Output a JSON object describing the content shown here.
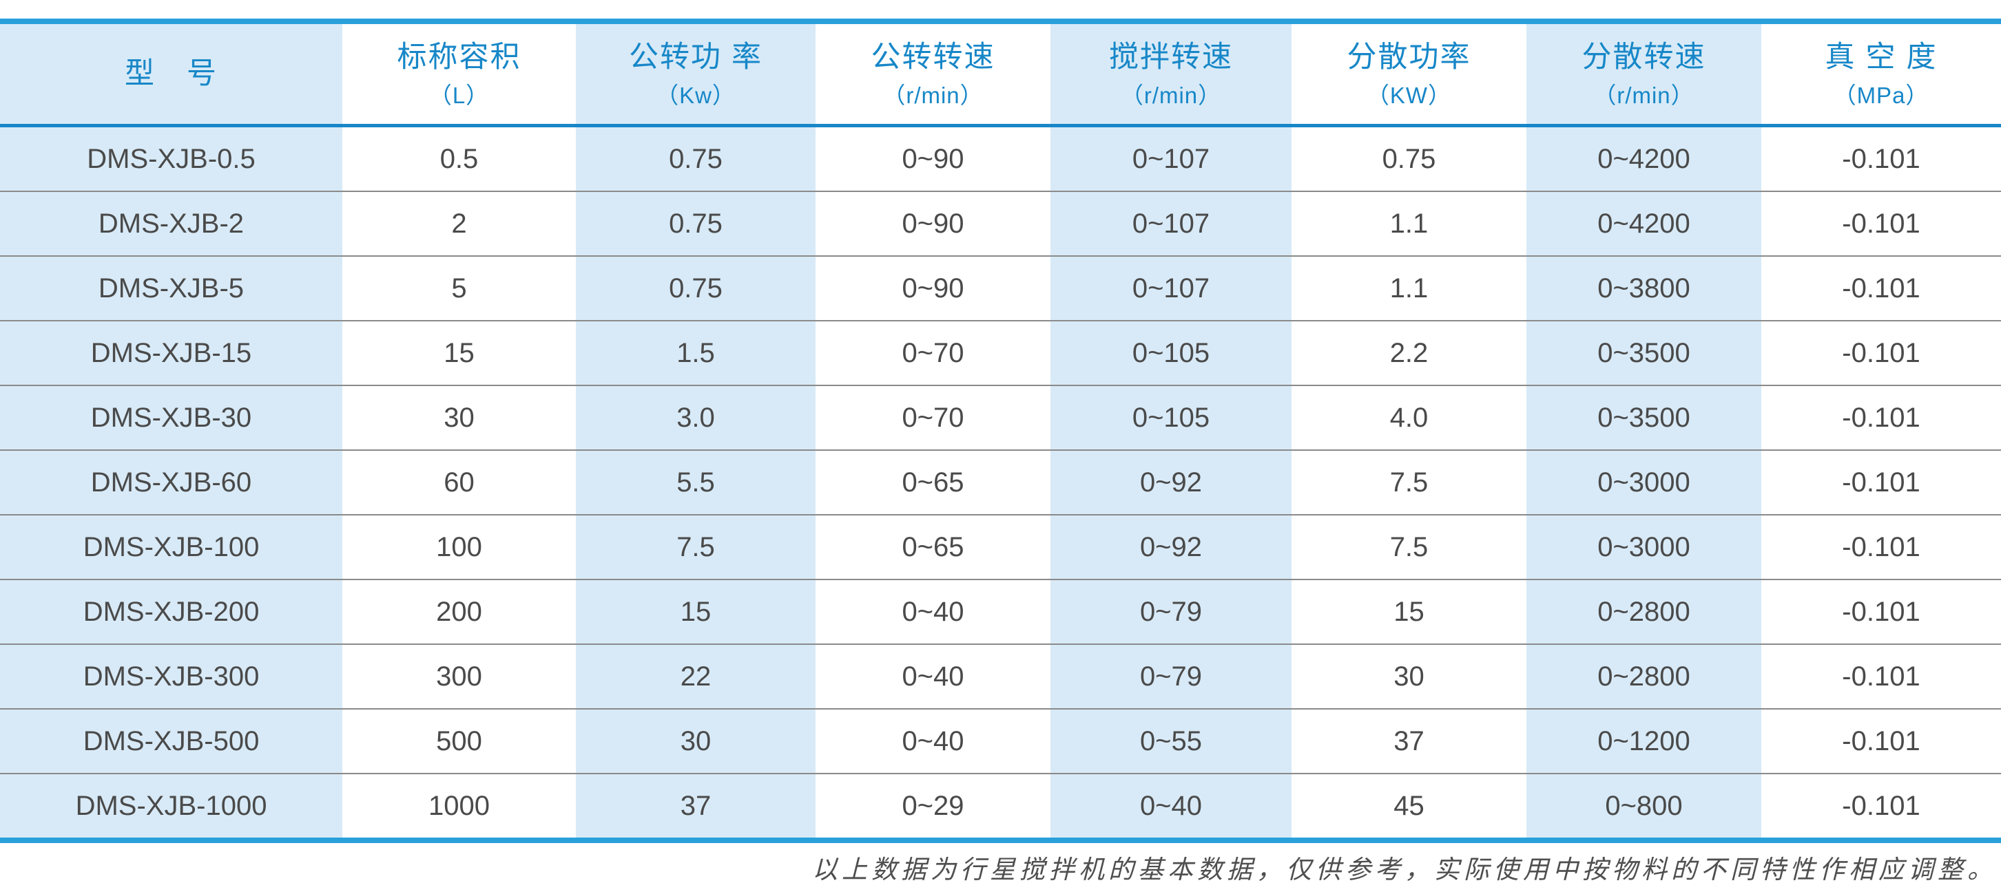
{
  "colors": {
    "header_text": "#1787C8",
    "thick_line": "#29A0DA",
    "header_rule": "#1787C8",
    "shade": "#D8EAF7",
    "body_text": "#4A4A4A",
    "row_rule": "#8A8A8A",
    "footnote_text": "#4F4F4F"
  },
  "table": {
    "columns": [
      {
        "title": "型　号",
        "unit": ""
      },
      {
        "title": "标称容积",
        "unit": "（L）"
      },
      {
        "title": "公转功 率",
        "unit": "（Kw）"
      },
      {
        "title": "公转转速",
        "unit": "（r/min）"
      },
      {
        "title": "搅拌转速",
        "unit": "（r/min）"
      },
      {
        "title": "分散功率",
        "unit": "（KW）"
      },
      {
        "title": "分散转速",
        "unit": "（r/min）"
      },
      {
        "title": "真 空 度",
        "unit": "（MPa）"
      }
    ],
    "rows": [
      [
        "DMS-XJB-0.5",
        "0.5",
        "0.75",
        "0~90",
        "0~107",
        "0.75",
        "0~4200",
        "-0.101"
      ],
      [
        "DMS-XJB-2",
        "2",
        "0.75",
        "0~90",
        "0~107",
        "1.1",
        "0~4200",
        "-0.101"
      ],
      [
        "DMS-XJB-5",
        "5",
        "0.75",
        "0~90",
        "0~107",
        "1.1",
        "0~3800",
        "-0.101"
      ],
      [
        "DMS-XJB-15",
        "15",
        "1.5",
        "0~70",
        "0~105",
        "2.2",
        "0~3500",
        "-0.101"
      ],
      [
        "DMS-XJB-30",
        "30",
        "3.0",
        "0~70",
        "0~105",
        "4.0",
        "0~3500",
        "-0.101"
      ],
      [
        "DMS-XJB-60",
        "60",
        "5.5",
        "0~65",
        "0~92",
        "7.5",
        "0~3000",
        "-0.101"
      ],
      [
        "DMS-XJB-100",
        "100",
        "7.5",
        "0~65",
        "0~92",
        "7.5",
        "0~3000",
        "-0.101"
      ],
      [
        "DMS-XJB-200",
        "200",
        "15",
        "0~40",
        "0~79",
        "15",
        "0~2800",
        "-0.101"
      ],
      [
        "DMS-XJB-300",
        "300",
        "22",
        "0~40",
        "0~79",
        "30",
        "0~2800",
        "-0.101"
      ],
      [
        "DMS-XJB-500",
        "500",
        "30",
        "0~40",
        "0~55",
        "37",
        "0~1200",
        "-0.101"
      ],
      [
        "DMS-XJB-1000",
        "1000",
        "37",
        "0~29",
        "0~40",
        "45",
        "0~800",
        "-0.101"
      ]
    ]
  },
  "footnote": "以上数据为行星搅拌机的基本数据，仅供参考，实际使用中按物料的不同特性作相应调整。"
}
